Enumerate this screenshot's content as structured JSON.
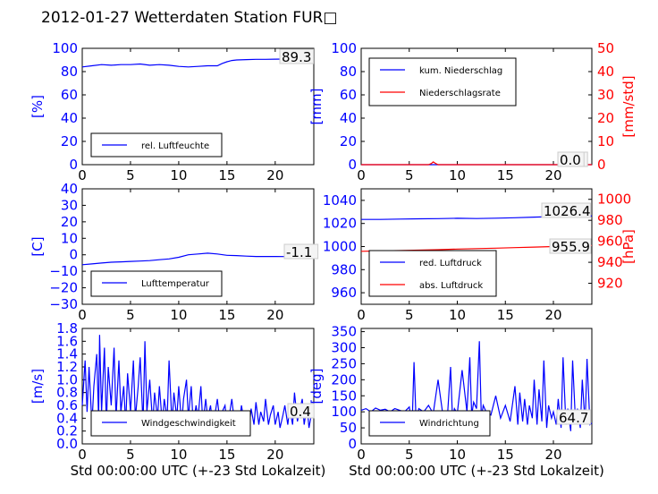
{
  "title": "2012-01-27 Wetterdaten Station FUR□",
  "colors": {
    "primary": "#0000ff",
    "secondary": "#ff0000",
    "axis": "#000000",
    "valuebox": "#cccccc"
  },
  "chart_data": [
    {
      "type": "line",
      "name": "humidity",
      "ylabel": "[%]",
      "ylim": [
        0,
        100
      ],
      "yticks": [
        0,
        20,
        40,
        60,
        80,
        100
      ],
      "xlim": [
        0,
        24
      ],
      "xticks": [
        0,
        5,
        10,
        15,
        20
      ],
      "xlabel": "",
      "legend": [
        "rel. Luftfeuchte"
      ],
      "legend_position": "bottom-left",
      "current_value": "89.3",
      "series": [
        {
          "name": "rel. Luftfeuchte",
          "axis": "left",
          "color": "#0000ff",
          "x": [
            0,
            1,
            2,
            3,
            4,
            5,
            6,
            7,
            8,
            9,
            10,
            11,
            12,
            13,
            14,
            14.5,
            15,
            15.5,
            16,
            17,
            18,
            19,
            20,
            21,
            22,
            23,
            24
          ],
          "y": [
            84,
            85,
            86,
            85.5,
            86,
            86,
            86.5,
            85.5,
            86,
            85.5,
            84.5,
            84,
            84.5,
            85,
            85,
            87,
            88.5,
            89.5,
            90,
            90.3,
            90.5,
            90.5,
            90.7,
            90.8,
            91,
            90.5,
            89.3
          ]
        }
      ]
    },
    {
      "type": "line",
      "name": "precipitation",
      "ylabel": "[mm]",
      "ylim": [
        0,
        100
      ],
      "yticks": [
        0,
        20,
        40,
        60,
        80,
        100
      ],
      "y2label": "[mm/std]",
      "y2lim": [
        0,
        50
      ],
      "y2ticks": [
        0,
        10,
        20,
        30,
        40,
        50
      ],
      "xlim": [
        0,
        24
      ],
      "xticks": [
        0,
        5,
        10,
        15,
        20
      ],
      "xlabel": "",
      "legend": [
        "kum. Niederschlag",
        "Niederschlagsrate"
      ],
      "legend_position": "top-left",
      "current_value": "0.0",
      "current_value2": "0.0",
      "series": [
        {
          "name": "kum. Niederschlag",
          "axis": "left",
          "color": "#0000ff",
          "x": [
            0,
            24
          ],
          "y": [
            0,
            0
          ]
        },
        {
          "name": "Niederschlagsrate",
          "axis": "right",
          "color": "#ff0000",
          "x": [
            0,
            7,
            7.3,
            7.5,
            7.7,
            8,
            24
          ],
          "y": [
            0,
            0,
            0.5,
            1.2,
            0.6,
            0,
            0
          ]
        }
      ]
    },
    {
      "type": "line",
      "name": "temperature",
      "ylabel": "[C]",
      "ylim": [
        -30,
        40
      ],
      "yticks": [
        -30,
        -20,
        -10,
        0,
        10,
        20,
        30,
        40
      ],
      "xlim": [
        0,
        24
      ],
      "xticks": [
        0,
        5,
        10,
        15,
        20
      ],
      "xlabel": "",
      "legend": [
        "Lufttemperatur"
      ],
      "legend_position": "bottom-left",
      "current_value": "-1.1",
      "series": [
        {
          "name": "Lufttemperatur",
          "axis": "left",
          "color": "#0000ff",
          "x": [
            0,
            1,
            2,
            3,
            4,
            5,
            6,
            7,
            8,
            9,
            10,
            11,
            12,
            13,
            14,
            15,
            16,
            17,
            18,
            19,
            20,
            21,
            22,
            23,
            24
          ],
          "y": [
            -6,
            -5.5,
            -5,
            -4.5,
            -4.3,
            -4,
            -3.8,
            -3.5,
            -3,
            -2.5,
            -1.5,
            0,
            0.5,
            1,
            0.5,
            -0.3,
            -0.5,
            -0.8,
            -1,
            -1,
            -1,
            -1.1,
            -1.1,
            -1.1,
            -1.1
          ]
        }
      ]
    },
    {
      "type": "line",
      "name": "pressure",
      "ylabel": "",
      "ylim": [
        950,
        1050
      ],
      "yticks": [
        960,
        980,
        1000,
        1020,
        1040
      ],
      "y2label": "[hPa]",
      "y2lim": [
        900,
        1010
      ],
      "y2ticks": [
        920,
        940,
        960,
        980,
        1000
      ],
      "xlim": [
        0,
        24
      ],
      "xticks": [
        0,
        5,
        10,
        15,
        20
      ],
      "xlabel": "",
      "legend": [
        "red. Luftdruck",
        "abs. Luftdruck"
      ],
      "legend_position": "bottom-left",
      "current_value": "1026.4",
      "current_value2": "955.9",
      "series": [
        {
          "name": "red. Luftdruck",
          "axis": "left",
          "color": "#0000ff",
          "x": [
            0,
            2,
            4,
            6,
            8,
            10,
            12,
            14,
            16,
            18,
            20,
            22,
            24
          ],
          "y": [
            1023.5,
            1023.5,
            1023.8,
            1024,
            1024.2,
            1024.5,
            1024.3,
            1024.6,
            1025,
            1025.5,
            1026,
            1026.2,
            1026.4
          ]
        },
        {
          "name": "abs. Luftdruck",
          "axis": "right",
          "color": "#ff0000",
          "x": [
            0,
            2,
            4,
            6,
            8,
            10,
            12,
            14,
            16,
            18,
            20,
            22,
            24
          ],
          "y": [
            950.5,
            950.8,
            951.2,
            951.6,
            952,
            952.6,
            953,
            953.5,
            954,
            954.5,
            955,
            955.5,
            955.9
          ]
        }
      ]
    },
    {
      "type": "line",
      "name": "wind-speed",
      "ylabel": "[m/s]",
      "ylim": [
        0,
        1.8
      ],
      "yticks": [
        0.0,
        0.2,
        0.4,
        0.6,
        0.8,
        1.0,
        1.2,
        1.4,
        1.6,
        1.8
      ],
      "xlim": [
        0,
        24
      ],
      "xticks": [
        0,
        5,
        10,
        15,
        20
      ],
      "xlabel": "Std 00:00:00 UTC (+-23 Std Lokalzeit)",
      "legend": [
        "Windgeschwindigkeit"
      ],
      "legend_position": "bottom-left",
      "current_value": "0.4",
      "series": [
        {
          "name": "Windgeschwindigkeit",
          "axis": "left",
          "color": "#0000ff",
          "x": [
            0,
            0.3,
            0.5,
            0.7,
            1,
            1.2,
            1.5,
            1.7,
            1.8,
            2,
            2.3,
            2.5,
            2.7,
            3,
            3.3,
            3.5,
            3.8,
            4,
            4.3,
            4.5,
            4.7,
            5,
            5.3,
            5.5,
            5.8,
            6,
            6.3,
            6.5,
            6.7,
            7,
            7.3,
            7.5,
            7.8,
            8,
            8.3,
            8.5,
            8.8,
            9,
            9.3,
            9.5,
            9.8,
            10,
            10.3,
            10.5,
            10.8,
            11,
            11.3,
            11.5,
            11.8,
            12,
            12.3,
            12.5,
            12.8,
            13,
            13.3,
            13.5,
            13.8,
            14,
            14.3,
            14.5,
            14.8,
            15,
            15.3,
            15.5,
            15.8,
            16,
            16.3,
            16.5,
            16.8,
            17,
            17.3,
            17.5,
            17.8,
            18,
            18.3,
            18.5,
            18.8,
            19,
            19.3,
            19.5,
            19.8,
            20,
            20.3,
            20.5,
            20.8,
            21,
            21.3,
            21.5,
            21.8,
            22,
            22.3,
            22.5,
            22.8,
            23,
            23.3,
            23.5,
            23.8,
            24
          ],
          "y": [
            0.6,
            1.3,
            0.5,
            1.2,
            0.3,
            0.9,
            1.4,
            0.4,
            1.7,
            0.5,
            1.5,
            0.3,
            1.2,
            0.6,
            1.5,
            0.4,
            1.3,
            0.5,
            0.9,
            0.3,
            1.1,
            0.5,
            1.3,
            0.4,
            0.9,
            1.35,
            0.3,
            1.6,
            0.5,
            1.0,
            0.3,
            0.8,
            0.4,
            0.9,
            0.3,
            0.7,
            0.4,
            1.3,
            0.3,
            0.8,
            0.4,
            0.9,
            0.3,
            0.7,
            1.0,
            0.4,
            0.9,
            0.3,
            0.6,
            0.4,
            0.9,
            0.3,
            0.7,
            0.4,
            0.6,
            0.3,
            0.5,
            0.7,
            0.3,
            0.5,
            0.6,
            0.3,
            0.5,
            0.7,
            0.3,
            0.5,
            0.35,
            0.6,
            0.3,
            0.45,
            0.25,
            0.55,
            0.3,
            0.65,
            0.3,
            0.5,
            0.35,
            0.7,
            0.3,
            0.45,
            0.6,
            0.3,
            0.5,
            0.25,
            0.45,
            0.6,
            0.3,
            0.55,
            0.3,
            0.8,
            0.35,
            0.5,
            0.7,
            0.3,
            0.6,
            0.25,
            0.5,
            0.4
          ]
        }
      ]
    },
    {
      "type": "line",
      "name": "wind-direction",
      "ylabel": "[deg]",
      "ylim": [
        0,
        360
      ],
      "yticks": [
        0,
        50,
        100,
        150,
        200,
        250,
        300,
        350
      ],
      "xlim": [
        0,
        24
      ],
      "xticks": [
        0,
        5,
        10,
        15,
        20
      ],
      "xlabel": "Std 00:00:00 UTC (+-23 Std Lokalzeit)",
      "legend": [
        "Windrichtung"
      ],
      "legend_position": "bottom-left",
      "current_value": "64.7",
      "series": [
        {
          "name": "Windrichtung",
          "axis": "left",
          "color": "#0000ff",
          "x": [
            0,
            0.5,
            1,
            1.5,
            2,
            2.5,
            3,
            3.5,
            4,
            4.5,
            5,
            5.3,
            5.5,
            5.7,
            6,
            6.5,
            7,
            7.5,
            8,
            8.5,
            9,
            9.3,
            9.5,
            9.7,
            10,
            10.5,
            11,
            11.3,
            11.5,
            11.7,
            12,
            12.3,
            12.5,
            12.7,
            13,
            13.5,
            14,
            14.5,
            15,
            15.5,
            16,
            16.3,
            16.5,
            16.8,
            17,
            17.3,
            17.5,
            17.8,
            18,
            18.3,
            18.5,
            18.8,
            19,
            19.3,
            19.5,
            19.8,
            20,
            20.3,
            20.5,
            20.8,
            21,
            21.3,
            21.5,
            21.8,
            22,
            22.3,
            22.5,
            22.8,
            23,
            23.3,
            23.5,
            23.8,
            24
          ],
          "y": [
            105,
            110,
            100,
            112,
            105,
            108,
            100,
            110,
            105,
            100,
            115,
            60,
            255,
            80,
            110,
            100,
            120,
            95,
            200,
            90,
            100,
            240,
            80,
            110,
            95,
            230,
            100,
            270,
            90,
            130,
            110,
            320,
            80,
            120,
            100,
            90,
            150,
            80,
            120,
            70,
            180,
            60,
            160,
            70,
            140,
            60,
            120,
            80,
            200,
            60,
            170,
            70,
            260,
            50,
            120,
            80,
            100,
            60,
            140,
            50,
            270,
            60,
            110,
            40,
            260,
            70,
            110,
            50,
            200,
            60,
            265,
            60,
            65
          ]
        }
      ]
    }
  ]
}
